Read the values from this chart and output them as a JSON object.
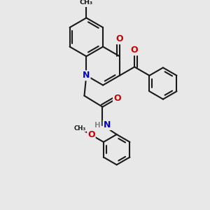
{
  "bg_color": "#e8e8e8",
  "bond_color": "#1a1a1a",
  "N_color": "#0000cc",
  "O_color": "#cc0000",
  "bond_width": 1.5,
  "font_size_atom": 9.0,
  "figsize": [
    3.0,
    3.0
  ],
  "dpi": 100,
  "xlim": [
    0,
    10
  ],
  "ylim": [
    0,
    10
  ]
}
